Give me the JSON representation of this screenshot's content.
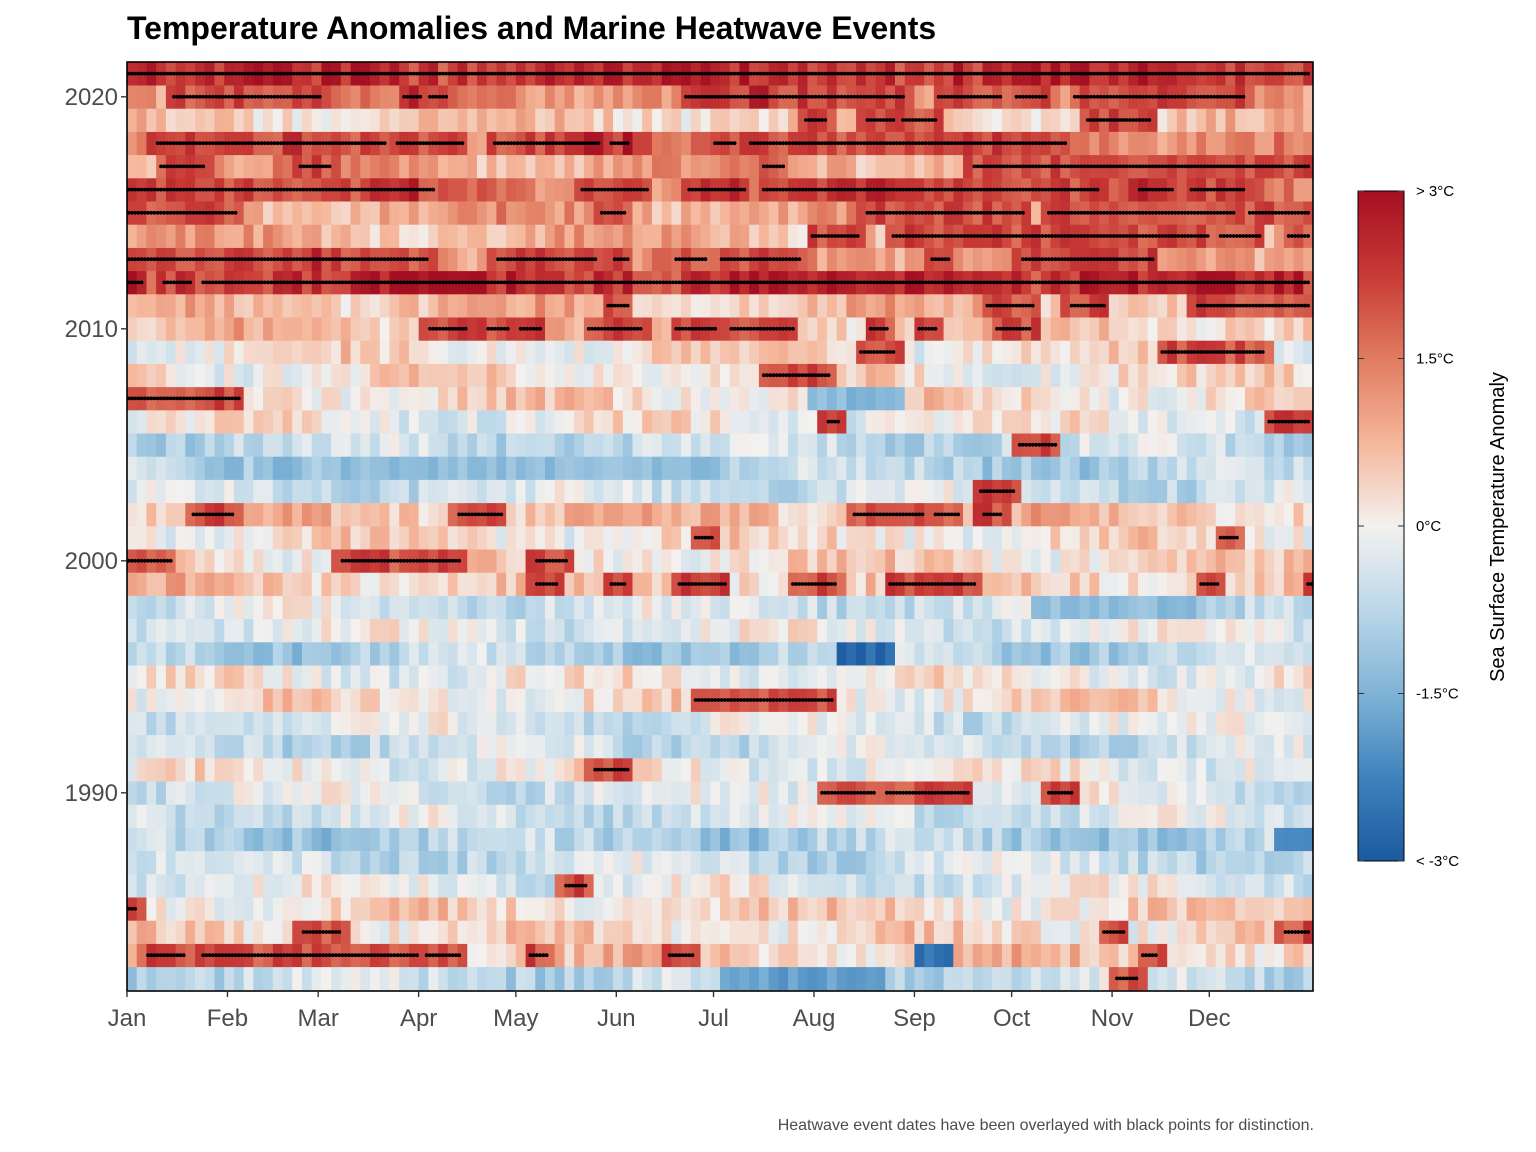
{
  "chart_data": {
    "type": "heatmap",
    "title": "Temperature Anomalies and Marine Heatwave Events",
    "caption": "Heatwave event dates have been overlayed with black points for distinction.",
    "xlabel": "",
    "ylabel": "",
    "x_ticks": [
      "Jan",
      "Feb",
      "Mar",
      "Apr",
      "May",
      "Jun",
      "Jul",
      "Aug",
      "Sep",
      "Oct",
      "Nov",
      "Dec"
    ],
    "x_tick_days": [
      1,
      32,
      60,
      91,
      121,
      152,
      182,
      213,
      244,
      274,
      305,
      335
    ],
    "y_ticks": [
      "1990",
      "2000",
      "2010",
      "2020"
    ],
    "y_tick_values": [
      1990,
      2000,
      2010,
      2020
    ],
    "year_range": [
      1982,
      2021
    ],
    "day_range": [
      1,
      366
    ],
    "grid": false,
    "legend": {
      "title": "Sea Surface Temperature Anomaly",
      "placement": "right",
      "labels": [
        "> 3°C",
        "1.5°C",
        "0°C",
        "-1.5°C",
        "< -3°C"
      ],
      "values": [
        3,
        1.5,
        0,
        -1.5,
        -3
      ],
      "colors": [
        "#67001f",
        "#b2182b",
        "#d6604d",
        "#f4a582",
        "#fddbc7",
        "#f7f7f7",
        "#d1e5f0",
        "#92c5de",
        "#4393c3",
        "#2166ac",
        "#053061"
      ]
    },
    "heatwave_color": "#000000",
    "heatwave_events": [
      {
        "year": 2021,
        "start": 1,
        "end": 365
      },
      {
        "year": 2020,
        "start": 15,
        "end": 60
      },
      {
        "year": 2020,
        "start": 86,
        "end": 91
      },
      {
        "year": 2020,
        "start": 94,
        "end": 99
      },
      {
        "year": 2020,
        "start": 173,
        "end": 240
      },
      {
        "year": 2020,
        "start": 251,
        "end": 270
      },
      {
        "year": 2020,
        "start": 275,
        "end": 284
      },
      {
        "year": 2020,
        "start": 293,
        "end": 345
      },
      {
        "year": 2019,
        "start": 210,
        "end": 216
      },
      {
        "year": 2019,
        "start": 229,
        "end": 237
      },
      {
        "year": 2019,
        "start": 240,
        "end": 250
      },
      {
        "year": 2019,
        "start": 297,
        "end": 316
      },
      {
        "year": 2018,
        "start": 10,
        "end": 80
      },
      {
        "year": 2018,
        "start": 84,
        "end": 104
      },
      {
        "year": 2018,
        "start": 114,
        "end": 146
      },
      {
        "year": 2018,
        "start": 150,
        "end": 155
      },
      {
        "year": 2018,
        "start": 182,
        "end": 188
      },
      {
        "year": 2018,
        "start": 193,
        "end": 290
      },
      {
        "year": 2017,
        "start": 11,
        "end": 24
      },
      {
        "year": 2017,
        "start": 54,
        "end": 63
      },
      {
        "year": 2017,
        "start": 197,
        "end": 203
      },
      {
        "year": 2017,
        "start": 262,
        "end": 365
      },
      {
        "year": 2016,
        "start": 1,
        "end": 95
      },
      {
        "year": 2016,
        "start": 141,
        "end": 161
      },
      {
        "year": 2016,
        "start": 174,
        "end": 191
      },
      {
        "year": 2016,
        "start": 197,
        "end": 300
      },
      {
        "year": 2016,
        "start": 313,
        "end": 323
      },
      {
        "year": 2016,
        "start": 329,
        "end": 345
      },
      {
        "year": 2015,
        "start": 1,
        "end": 34
      },
      {
        "year": 2015,
        "start": 147,
        "end": 154
      },
      {
        "year": 2015,
        "start": 229,
        "end": 277
      },
      {
        "year": 2015,
        "start": 285,
        "end": 342
      },
      {
        "year": 2015,
        "start": 347,
        "end": 365
      },
      {
        "year": 2014,
        "start": 212,
        "end": 226
      },
      {
        "year": 2014,
        "start": 237,
        "end": 334
      },
      {
        "year": 2014,
        "start": 338,
        "end": 350
      },
      {
        "year": 2014,
        "start": 359,
        "end": 365
      },
      {
        "year": 2013,
        "start": 1,
        "end": 93
      },
      {
        "year": 2013,
        "start": 115,
        "end": 145
      },
      {
        "year": 2013,
        "start": 151,
        "end": 155
      },
      {
        "year": 2013,
        "start": 170,
        "end": 179
      },
      {
        "year": 2013,
        "start": 184,
        "end": 208
      },
      {
        "year": 2013,
        "start": 249,
        "end": 254
      },
      {
        "year": 2013,
        "start": 277,
        "end": 317
      },
      {
        "year": 2012,
        "start": 1,
        "end": 5
      },
      {
        "year": 2012,
        "start": 12,
        "end": 20
      },
      {
        "year": 2012,
        "start": 24,
        "end": 365
      },
      {
        "year": 2011,
        "start": 149,
        "end": 155
      },
      {
        "year": 2011,
        "start": 266,
        "end": 280
      },
      {
        "year": 2011,
        "start": 292,
        "end": 302
      },
      {
        "year": 2011,
        "start": 331,
        "end": 365
      },
      {
        "year": 2010,
        "start": 94,
        "end": 105
      },
      {
        "year": 2010,
        "start": 112,
        "end": 118
      },
      {
        "year": 2010,
        "start": 122,
        "end": 128
      },
      {
        "year": 2010,
        "start": 143,
        "end": 159
      },
      {
        "year": 2010,
        "start": 170,
        "end": 182
      },
      {
        "year": 2010,
        "start": 187,
        "end": 206
      },
      {
        "year": 2010,
        "start": 230,
        "end": 235
      },
      {
        "year": 2010,
        "start": 245,
        "end": 250
      },
      {
        "year": 2010,
        "start": 269,
        "end": 279
      },
      {
        "year": 2009,
        "start": 227,
        "end": 237
      },
      {
        "year": 2009,
        "start": 320,
        "end": 351
      },
      {
        "year": 2008,
        "start": 197,
        "end": 217
      },
      {
        "year": 2007,
        "start": 1,
        "end": 35
      },
      {
        "year": 2006,
        "start": 217,
        "end": 220
      },
      {
        "year": 2006,
        "start": 353,
        "end": 365
      },
      {
        "year": 2005,
        "start": 276,
        "end": 287
      },
      {
        "year": 2003,
        "start": 264,
        "end": 274
      },
      {
        "year": 2002,
        "start": 21,
        "end": 33
      },
      {
        "year": 2002,
        "start": 103,
        "end": 116
      },
      {
        "year": 2002,
        "start": 225,
        "end": 246
      },
      {
        "year": 2002,
        "start": 250,
        "end": 257
      },
      {
        "year": 2002,
        "start": 265,
        "end": 270
      },
      {
        "year": 2001,
        "start": 176,
        "end": 181
      },
      {
        "year": 2001,
        "start": 338,
        "end": 343
      },
      {
        "year": 2000,
        "start": 1,
        "end": 14
      },
      {
        "year": 2000,
        "start": 67,
        "end": 103
      },
      {
        "year": 2000,
        "start": 127,
        "end": 136
      },
      {
        "year": 1999,
        "start": 127,
        "end": 133
      },
      {
        "year": 1999,
        "start": 150,
        "end": 154
      },
      {
        "year": 1999,
        "start": 171,
        "end": 185
      },
      {
        "year": 1999,
        "start": 206,
        "end": 219
      },
      {
        "year": 1999,
        "start": 236,
        "end": 262
      },
      {
        "year": 1999,
        "start": 332,
        "end": 337
      },
      {
        "year": 1999,
        "start": 365,
        "end": 366
      },
      {
        "year": 1994,
        "start": 176,
        "end": 218
      },
      {
        "year": 1991,
        "start": 145,
        "end": 155
      },
      {
        "year": 1990,
        "start": 215,
        "end": 231
      },
      {
        "year": 1990,
        "start": 235,
        "end": 260
      },
      {
        "year": 1990,
        "start": 285,
        "end": 292
      },
      {
        "year": 1986,
        "start": 136,
        "end": 142
      },
      {
        "year": 1985,
        "start": 1,
        "end": 3
      },
      {
        "year": 1984,
        "start": 55,
        "end": 66
      },
      {
        "year": 1984,
        "start": 302,
        "end": 308
      },
      {
        "year": 1984,
        "start": 358,
        "end": 365
      },
      {
        "year": 1983,
        "start": 7,
        "end": 18
      },
      {
        "year": 1983,
        "start": 24,
        "end": 90
      },
      {
        "year": 1983,
        "start": 93,
        "end": 103
      },
      {
        "year": 1983,
        "start": 125,
        "end": 130
      },
      {
        "year": 1983,
        "start": 168,
        "end": 175
      },
      {
        "year": 1983,
        "start": 314,
        "end": 318
      },
      {
        "year": 1982,
        "start": 306,
        "end": 312
      }
    ],
    "anomaly_profile": {
      "year_base": {
        "2021": 2.0,
        "2020": 1.3,
        "2019": 0.5,
        "2018": 1.5,
        "2017": 1.0,
        "2016": 1.5,
        "2015": 1.0,
        "2014": 0.8,
        "2013": 1.2,
        "2012": 2.0,
        "2011": 0.7,
        "2010": 0.6,
        "2009": 0.2,
        "2008": 0.2,
        "2007": 0.3,
        "2006": 0.0,
        "2005": -0.6,
        "2004": -0.8,
        "2003": -0.5,
        "2002": 0.6,
        "2001": 0.2,
        "2000": 0.3,
        "1999": 0.5,
        "1998": -0.4,
        "1997": -0.2,
        "1996": -0.8,
        "1995": 0.0,
        "1994": 0.2,
        "1993": -0.3,
        "1992": -0.5,
        "1991": 0.0,
        "1990": -0.3,
        "1989": -0.4,
        "1988": -0.9,
        "1987": -0.5,
        "1986": -0.2,
        "1985": 0.3,
        "1984": 0.3,
        "1983": 0.5,
        "1982": -0.6
      },
      "cold_spells": [
        {
          "year": 1996,
          "start": 221,
          "end": 236,
          "value": -2.7
        },
        {
          "year": 1983,
          "start": 245,
          "end": 256,
          "value": -2.5
        },
        {
          "year": 1982,
          "start": 185,
          "end": 235,
          "value": -1.8
        },
        {
          "year": 2007,
          "start": 210,
          "end": 240,
          "value": -1.4
        },
        {
          "year": 2004,
          "start": 65,
          "end": 150,
          "value": -1.3
        },
        {
          "year": 1998,
          "start": 280,
          "end": 330,
          "value": -1.3
        },
        {
          "year": 1988,
          "start": 355,
          "end": 366,
          "value": -2.0
        }
      ]
    }
  }
}
